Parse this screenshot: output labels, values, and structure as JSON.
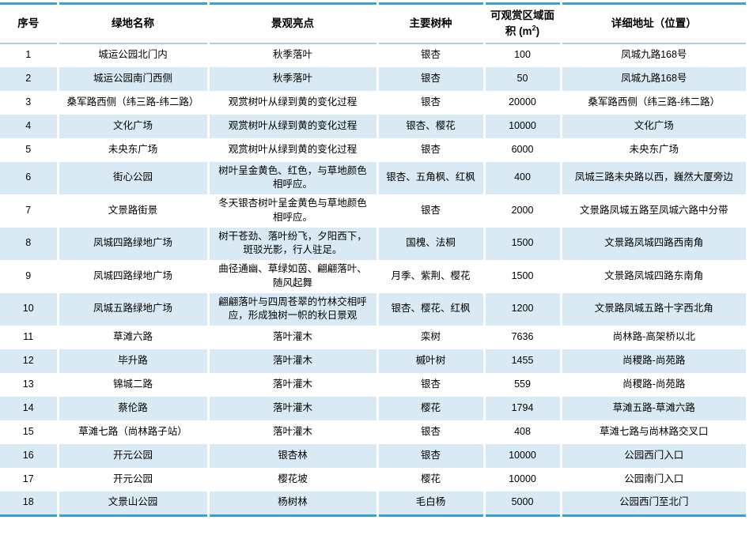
{
  "colors": {
    "table_border_blue": "#39a0d5",
    "header_underline": "#a9cfe5",
    "banded_row_blue": "#d9eaf4",
    "text": "#000000",
    "background": "#ffffff"
  },
  "table": {
    "header": {
      "no": "序号",
      "name": "绿地名称",
      "highlight": "景观亮点",
      "species": "主要树种",
      "area_prefix": "可观赏区域面积 (m",
      "area_sup": "2",
      "area_suffix": ")",
      "address": "详细地址（位置）"
    },
    "rows": [
      {
        "no": "1",
        "name": "城运公园北门内",
        "highlight": "秋季落叶",
        "species": "银杏",
        "area": "100",
        "address": "凤城九路168号"
      },
      {
        "no": "2",
        "name": "城运公园南门西侧",
        "highlight": "秋季落叶",
        "species": "银杏",
        "area": "50",
        "address": "凤城九路168号"
      },
      {
        "no": "3",
        "name": "桑军路西侧（纬三路-纬二路）",
        "highlight": "观赏树叶从绿到黄的变化过程",
        "species": "银杏",
        "area": "20000",
        "address": "桑军路西侧（纬三路-纬二路）"
      },
      {
        "no": "4",
        "name": "文化广场",
        "highlight": "观赏树叶从绿到黄的变化过程",
        "species": "银杏、樱花",
        "area": "10000",
        "address": "文化广场"
      },
      {
        "no": "5",
        "name": "未央东广场",
        "highlight": "观赏树叶从绿到黄的变化过程",
        "species": "银杏",
        "area": "6000",
        "address": "未央东广场"
      },
      {
        "no": "6",
        "name": "街心公园",
        "highlight": "树叶呈金黄色、红色，与草地颜色相呼应。",
        "species": "银杏、五角枫、红枫",
        "area": "400",
        "address": "凤城三路未央路以西，巍然大厦旁边"
      },
      {
        "no": "7",
        "name": "文景路街景",
        "highlight": "冬天银杏树叶呈金黄色与草地颜色相呼应。",
        "species": "银杏",
        "area": "2000",
        "address": "文景路凤城五路至凤城六路中分带"
      },
      {
        "no": "8",
        "name": "凤城四路绿地广场",
        "highlight": "树干苍劲、落叶纷飞，夕阳西下，斑驳光影，行人驻足。",
        "species": "国槐、法桐",
        "area": "1500",
        "address": "文景路凤城四路西南角"
      },
      {
        "no": "9",
        "name": "凤城四路绿地广场",
        "highlight": "曲径通幽、草绿如茵、翩翩落叶、随风起舞",
        "species": "月季、紫荆、樱花",
        "area": "1500",
        "address": "文景路凤城四路东南角"
      },
      {
        "no": "10",
        "name": "凤城五路绿地广场",
        "highlight": "翩翩落叶与四周苍翠的竹林交相呼应，形成独树一帜的秋日景观",
        "species": "银杏、樱花、红枫",
        "area": "1200",
        "address": "文景路凤城五路十字西北角"
      },
      {
        "no": "11",
        "name": "草滩六路",
        "highlight": "落叶灌木",
        "species": "栾树",
        "area": "7636",
        "address": "尚林路-高架桥以北"
      },
      {
        "no": "12",
        "name": "毕升路",
        "highlight": "落叶灌木",
        "species": "槭叶树",
        "area": "1455",
        "address": "尚稷路-尚苑路"
      },
      {
        "no": "13",
        "name": "锦城二路",
        "highlight": "落叶灌木",
        "species": "银杏",
        "area": "559",
        "address": "尚稷路-尚苑路"
      },
      {
        "no": "14",
        "name": "蔡伦路",
        "highlight": "落叶灌木",
        "species": "樱花",
        "area": "1794",
        "address": "草滩五路-草滩六路"
      },
      {
        "no": "15",
        "name": "草滩七路（尚林路子站）",
        "highlight": "落叶灌木",
        "species": "银杏",
        "area": "408",
        "address": "草滩七路与尚林路交叉口"
      },
      {
        "no": "16",
        "name": "开元公园",
        "highlight": "银杏林",
        "species": "银杏",
        "area": "10000",
        "address": "公园西门入口"
      },
      {
        "no": "17",
        "name": "开元公园",
        "highlight": "樱花坡",
        "species": "樱花",
        "area": "10000",
        "address": "公园南门入口"
      },
      {
        "no": "18",
        "name": "文景山公园",
        "highlight": "杨树林",
        "species": "毛白杨",
        "area": "5000",
        "address": "公园西门至北门"
      }
    ]
  }
}
